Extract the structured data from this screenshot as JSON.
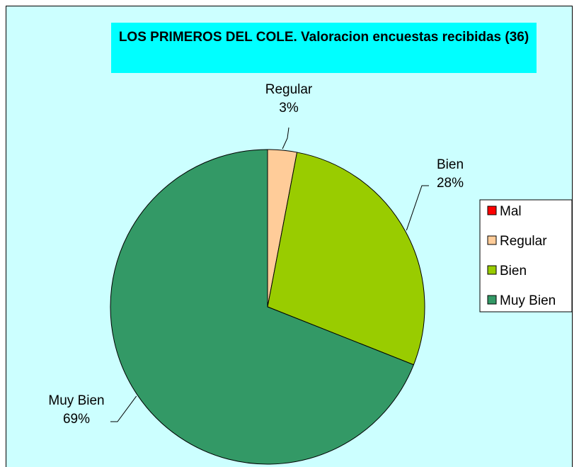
{
  "chart_data": {
    "type": "pie",
    "title": "LOS PRIMEROS DEL COLE. Valoracion encuestas recibidas (36)",
    "categories": [
      "Mal",
      "Regular",
      "Bien",
      "Muy Bien"
    ],
    "values": [
      0,
      3,
      28,
      69
    ],
    "value_labels": [
      null,
      "3%",
      "28%",
      "69%"
    ],
    "colors": [
      "#ff0000",
      "#ffcc99",
      "#99cc00",
      "#339966"
    ],
    "legend": "right"
  }
}
